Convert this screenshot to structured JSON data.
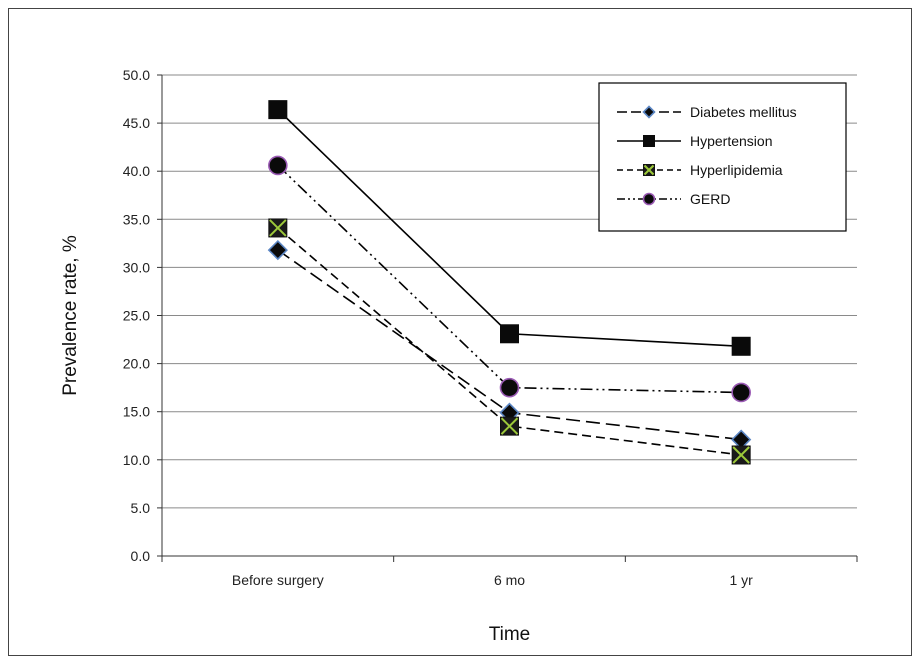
{
  "chart_data": {
    "type": "line",
    "categories": [
      "Before surgery",
      "6 mo",
      "1 yr"
    ],
    "xlabel": "Time",
    "ylabel": "Prevalence rate, %",
    "ylim": [
      0,
      50
    ],
    "yticks": [
      "0.0",
      "5.0",
      "10.0",
      "15.0",
      "20.0",
      "25.0",
      "30.0",
      "35.0",
      "40.0",
      "45.0",
      "50.0"
    ],
    "grid": true,
    "legend_position": "top-right",
    "series": [
      {
        "name": "Diabetes mellitus",
        "values": [
          31.8,
          14.9,
          12.1
        ],
        "marker": "diamond",
        "dash": "long-dash",
        "fill": "#0a0a0a",
        "edge": "#5b86c4"
      },
      {
        "name": "Hypertension",
        "values": [
          46.4,
          23.1,
          21.8
        ],
        "marker": "square",
        "dash": "solid",
        "fill": "#0a0a0a",
        "edge": "#0a0a0a"
      },
      {
        "name": "Hyperlipidemia",
        "values": [
          34.1,
          13.5,
          10.5
        ],
        "marker": "x-square",
        "dash": "dash",
        "fill": "#1a1a1a",
        "edge": "#9cc83a"
      },
      {
        "name": "GERD",
        "values": [
          40.6,
          17.5,
          17.0
        ],
        "marker": "circle",
        "dash": "dash-dot-dot",
        "fill": "#0a0a0a",
        "edge": "#9a5ab4"
      }
    ]
  }
}
